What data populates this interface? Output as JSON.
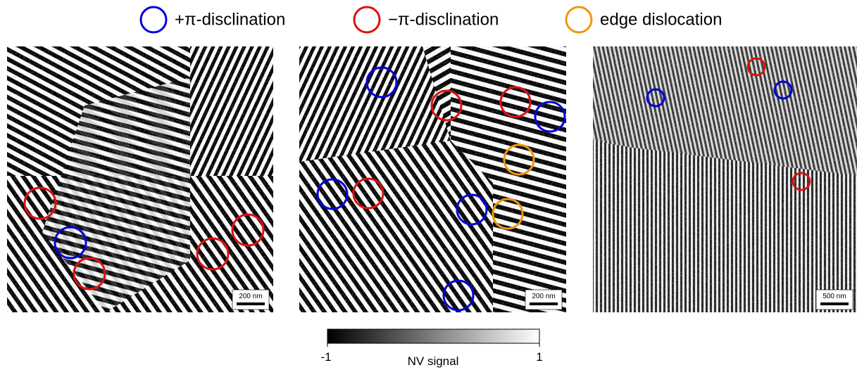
{
  "legend": {
    "items": [
      "+π-disclination",
      "−π-disclination",
      "edge dislocation"
    ]
  },
  "panels": [
    {
      "scale_bar": "200 nm"
    },
    {
      "scale_bar": "200 nm"
    },
    {
      "scale_bar": "500 nm"
    }
  ],
  "colorbar": {
    "min_label": "-1",
    "max_label": "1",
    "label": "NV signal"
  }
}
